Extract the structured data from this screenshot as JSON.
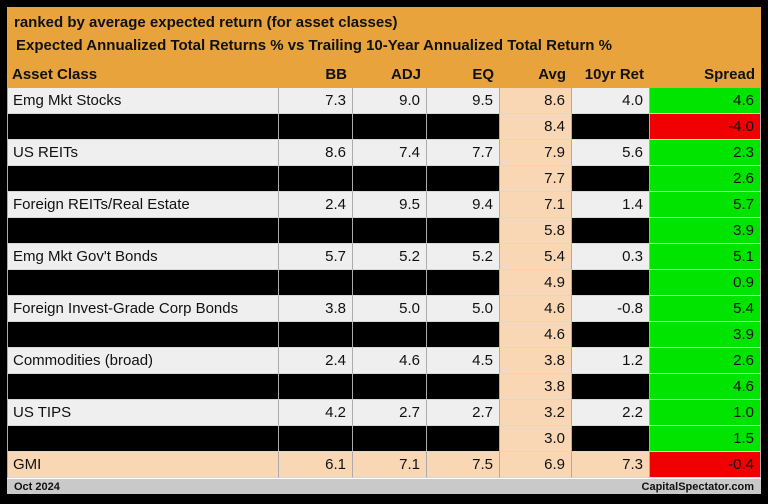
{
  "colors": {
    "orange": "#E8A33C",
    "peach": "#FAD7B4",
    "green": "#00E400",
    "red": "#F00000",
    "row_bg": "#EFEFEF",
    "footer_bg": "#C9C9C9",
    "vertical_line": "#ABABAB",
    "horizontal_line": "#D8D8D8"
  },
  "chart_data": {
    "type": "table",
    "title": "ranked by average expected return (for asset classes)",
    "subtitle": "Expected Annualized Total Returns % vs Trailing 10-Year Annualized Total Return %",
    "columns": [
      "Asset Class",
      "BB",
      "ADJ",
      "EQ",
      "Avg",
      "10yr Ret",
      "Spread"
    ],
    "rows": [
      {
        "type": "normal",
        "asset": "Emg Mkt Stocks",
        "bb": "7.3",
        "adj": "9.0",
        "eq": "9.5",
        "avg": "8.6",
        "ret10": "4.0",
        "spread": "4.6",
        "spread_color": "green"
      },
      {
        "type": "redacted",
        "asset": "",
        "bb": "",
        "adj": "",
        "eq": "",
        "avg": "8.4",
        "ret10": "",
        "spread": "-4.0",
        "spread_color": "red"
      },
      {
        "type": "normal",
        "asset": "US REITs",
        "bb": "8.6",
        "adj": "7.4",
        "eq": "7.7",
        "avg": "7.9",
        "ret10": "5.6",
        "spread": "2.3",
        "spread_color": "green"
      },
      {
        "type": "redacted",
        "asset": "",
        "bb": "",
        "adj": "",
        "eq": "",
        "avg": "7.7",
        "ret10": "",
        "spread": "2.6",
        "spread_color": "green"
      },
      {
        "type": "normal",
        "asset": "Foreign REITs/Real Estate",
        "bb": "2.4",
        "adj": "9.5",
        "eq": "9.4",
        "avg": "7.1",
        "ret10": "1.4",
        "spread": "5.7",
        "spread_color": "green"
      },
      {
        "type": "redacted",
        "asset": "",
        "bb": "",
        "adj": "",
        "eq": "",
        "avg": "5.8",
        "ret10": "",
        "spread": "3.9",
        "spread_color": "green"
      },
      {
        "type": "normal",
        "asset": "Emg Mkt Gov't Bonds",
        "bb": "5.7",
        "adj": "5.2",
        "eq": "5.2",
        "avg": "5.4",
        "ret10": "0.3",
        "spread": "5.1",
        "spread_color": "green"
      },
      {
        "type": "redacted",
        "asset": "",
        "bb": "",
        "adj": "",
        "eq": "",
        "avg": "4.9",
        "ret10": "",
        "spread": "0.9",
        "spread_color": "green"
      },
      {
        "type": "normal",
        "asset": "Foreign Invest-Grade Corp Bonds",
        "bb": "3.8",
        "adj": "5.0",
        "eq": "5.0",
        "avg": "4.6",
        "ret10": "-0.8",
        "spread": "5.4",
        "spread_color": "green"
      },
      {
        "type": "redacted",
        "asset": "",
        "bb": "",
        "adj": "",
        "eq": "",
        "avg": "4.6",
        "ret10": "",
        "spread": "3.9",
        "spread_color": "green"
      },
      {
        "type": "normal",
        "asset": "Commodities (broad)",
        "bb": "2.4",
        "adj": "4.6",
        "eq": "4.5",
        "avg": "3.8",
        "ret10": "1.2",
        "spread": "2.6",
        "spread_color": "green"
      },
      {
        "type": "redacted",
        "asset": "",
        "bb": "",
        "adj": "",
        "eq": "",
        "avg": "3.8",
        "ret10": "",
        "spread": "4.6",
        "spread_color": "green"
      },
      {
        "type": "normal",
        "asset": "US TIPS",
        "bb": "4.2",
        "adj": "2.7",
        "eq": "2.7",
        "avg": "3.2",
        "ret10": "2.2",
        "spread": "1.0",
        "spread_color": "green"
      },
      {
        "type": "redacted",
        "asset": "",
        "bb": "",
        "adj": "",
        "eq": "",
        "avg": "3.0",
        "ret10": "",
        "spread": "1.5",
        "spread_color": "green"
      },
      {
        "type": "highlight",
        "asset": "GMI",
        "bb": "6.1",
        "adj": "7.1",
        "eq": "7.5",
        "avg": "6.9",
        "ret10": "7.3",
        "spread": "-0.4",
        "spread_color": "red"
      }
    ]
  },
  "footer": {
    "left": "Oct 2024",
    "right": "CapitalSpectator.com"
  }
}
